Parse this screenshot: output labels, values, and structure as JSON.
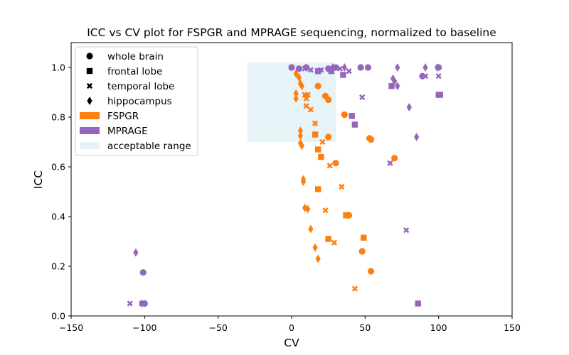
{
  "chart_data": {
    "type": "scatter",
    "title": "ICC vs CV plot for FSPGR and MPRAGE sequencing, normalized to baseline",
    "xlabel": "CV",
    "ylabel": "ICC",
    "xlim": [
      -150,
      150
    ],
    "ylim": [
      0.0,
      1.1
    ],
    "xticks": [
      "−150",
      "−100",
      "−50",
      "0",
      "50",
      "100",
      "150"
    ],
    "yticks": [
      "0.0",
      "0.2",
      "0.4",
      "0.6",
      "0.8",
      "1.0"
    ],
    "grid": false,
    "legend_position": "top-left",
    "acceptable_range": {
      "x": [
        -30,
        30
      ],
      "y": [
        0.7,
        1.02
      ],
      "label": "acceptable range",
      "color": "#add8e6",
      "opacity": 0.3
    },
    "legend": {
      "markers": [
        {
          "label": "whole brain",
          "marker": "circle"
        },
        {
          "label": "frontal lobe",
          "marker": "square"
        },
        {
          "label": "temporal lobe",
          "marker": "x"
        },
        {
          "label": "hippocampus",
          "marker": "diamond"
        }
      ],
      "sequences": [
        {
          "label": "FSPGR",
          "color": "#ff7f0e"
        },
        {
          "label": "MPRAGE",
          "color": "#9467bd"
        }
      ],
      "range_label": "acceptable range"
    },
    "series": [
      {
        "sequence": "FSPGR",
        "region": "whole brain",
        "marker": "circle",
        "color": "#ff7f0e",
        "points": [
          [
            18,
            0.925
          ],
          [
            23,
            0.885
          ],
          [
            25,
            0.87
          ],
          [
            36,
            0.81
          ],
          [
            25,
            0.72
          ],
          [
            53,
            0.715
          ],
          [
            54,
            0.71
          ],
          [
            70,
            0.635
          ],
          [
            30,
            0.615
          ],
          [
            38,
            0.405
          ],
          [
            39,
            0.405
          ],
          [
            48,
            0.26
          ],
          [
            54,
            0.18
          ]
        ]
      },
      {
        "sequence": "FSPGR",
        "region": "frontal lobe",
        "marker": "square",
        "color": "#ff7f0e",
        "points": [
          [
            16,
            0.73
          ],
          [
            18,
            0.67
          ],
          [
            20,
            0.64
          ],
          [
            18,
            0.51
          ],
          [
            37,
            0.405
          ],
          [
            49,
            0.315
          ],
          [
            25,
            0.31
          ]
        ]
      },
      {
        "sequence": "FSPGR",
        "region": "temporal lobe",
        "marker": "x",
        "color": "#ff7f0e",
        "points": [
          [
            9,
            0.89
          ],
          [
            11,
            0.89
          ],
          [
            10,
            0.875
          ],
          [
            10,
            0.845
          ],
          [
            13,
            0.83
          ],
          [
            16,
            0.775
          ],
          [
            21,
            0.7
          ],
          [
            26,
            0.605
          ],
          [
            34,
            0.52
          ],
          [
            23,
            0.425
          ],
          [
            29,
            0.295
          ],
          [
            43,
            0.11
          ]
        ]
      },
      {
        "sequence": "FSPGR",
        "region": "hippocampus",
        "marker": "diamond",
        "color": "#ff7f0e",
        "points": [
          [
            3,
            0.975
          ],
          [
            5,
            0.96
          ],
          [
            6,
            0.935
          ],
          [
            7,
            0.925
          ],
          [
            3,
            0.895
          ],
          [
            3,
            0.875
          ],
          [
            6,
            0.745
          ],
          [
            6,
            0.725
          ],
          [
            6,
            0.695
          ],
          [
            7,
            0.685
          ],
          [
            8,
            0.55
          ],
          [
            8,
            0.54
          ],
          [
            9,
            0.435
          ],
          [
            11,
            0.43
          ],
          [
            13,
            0.35
          ],
          [
            16,
            0.275
          ],
          [
            18,
            0.23
          ]
        ]
      },
      {
        "sequence": "MPRAGE",
        "region": "whole brain",
        "marker": "circle",
        "color": "#9467bd",
        "points": [
          [
            0,
            1.0
          ],
          [
            5,
            0.995
          ],
          [
            10,
            1.0
          ],
          [
            25,
            0.995
          ],
          [
            30,
            1.0
          ],
          [
            47,
            1.0
          ],
          [
            52,
            1.0
          ],
          [
            89,
            0.965
          ],
          [
            100,
            1.0
          ],
          [
            -101,
            0.175
          ],
          [
            -100,
            0.05
          ]
        ]
      },
      {
        "sequence": "MPRAGE",
        "region": "frontal lobe",
        "marker": "square",
        "color": "#9467bd",
        "points": [
          [
            18,
            0.985
          ],
          [
            27,
            0.985
          ],
          [
            35,
            0.97
          ],
          [
            41,
            0.805
          ],
          [
            43,
            0.77
          ],
          [
            68,
            0.925
          ],
          [
            100,
            0.89
          ],
          [
            101,
            0.89
          ],
          [
            86,
            0.05
          ]
        ]
      },
      {
        "sequence": "MPRAGE",
        "region": "temporal lobe",
        "marker": "x",
        "color": "#9467bd",
        "points": [
          [
            0,
            1.0
          ],
          [
            9,
            0.995
          ],
          [
            13,
            0.99
          ],
          [
            20,
            0.99
          ],
          [
            33,
            0.995
          ],
          [
            39,
            0.985
          ],
          [
            48,
            0.88
          ],
          [
            67,
            0.615
          ],
          [
            91,
            0.965
          ],
          [
            100,
            0.965
          ],
          [
            78,
            0.345
          ],
          [
            -110,
            0.05
          ],
          [
            -102,
            0.05
          ]
        ]
      },
      {
        "sequence": "MPRAGE",
        "region": "hippocampus",
        "marker": "diamond",
        "color": "#9467bd",
        "points": [
          [
            28,
            1.0
          ],
          [
            36,
            1.0
          ],
          [
            72,
            1.0
          ],
          [
            91,
            1.0
          ],
          [
            99,
            1.0
          ],
          [
            69,
            0.955
          ],
          [
            70,
            0.945
          ],
          [
            72,
            0.925
          ],
          [
            80,
            0.84
          ],
          [
            85,
            0.72
          ],
          [
            -106,
            0.255
          ],
          [
            -102,
            0.05
          ]
        ]
      }
    ]
  }
}
